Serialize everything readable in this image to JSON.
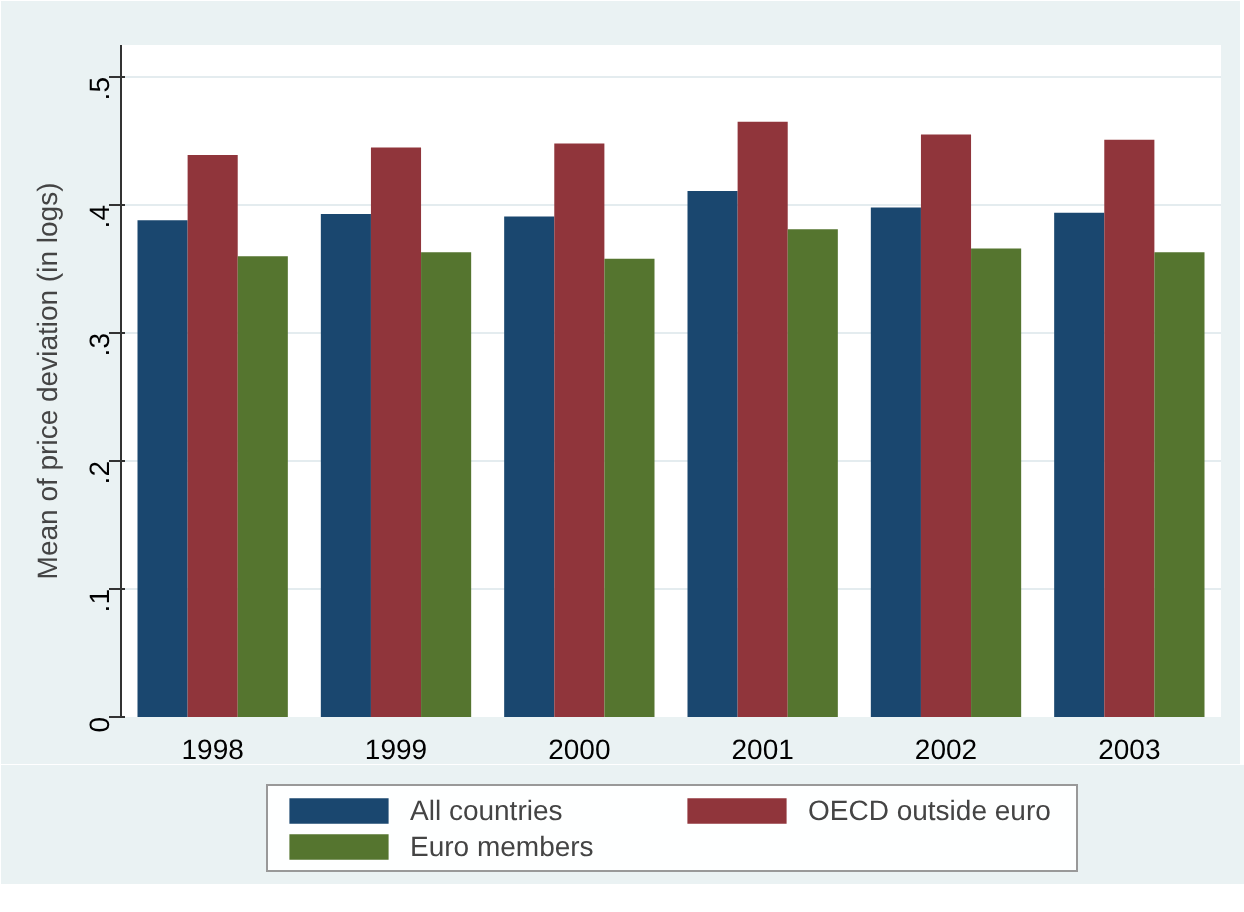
{
  "chart_data": {
    "type": "bar",
    "ylabel": "Mean of price deviation (in logs)",
    "categories": [
      "1998",
      "1999",
      "2000",
      "2001",
      "2002",
      "2003"
    ],
    "series": [
      {
        "name": "All countries",
        "color": "#1a476f",
        "values": [
          0.388,
          0.393,
          0.391,
          0.411,
          0.398,
          0.394
        ]
      },
      {
        "name": "OECD outside euro",
        "color": "#90353b",
        "values": [
          0.439,
          0.445,
          0.448,
          0.465,
          0.455,
          0.451
        ]
      },
      {
        "name": "Euro members",
        "color": "#55752f",
        "values": [
          0.36,
          0.363,
          0.358,
          0.381,
          0.366,
          0.363
        ]
      }
    ],
    "ylim": [
      0,
      0.525
    ],
    "yticks": [
      {
        "value": 0,
        "label": "0"
      },
      {
        "value": 0.1,
        "label": ".1"
      },
      {
        "value": 0.2,
        "label": ".2"
      },
      {
        "value": 0.3,
        "label": ".3"
      },
      {
        "value": 0.4,
        "label": ".4"
      },
      {
        "value": 0.5,
        "label": ".5"
      }
    ],
    "grid": "y",
    "legend": "bottom"
  }
}
